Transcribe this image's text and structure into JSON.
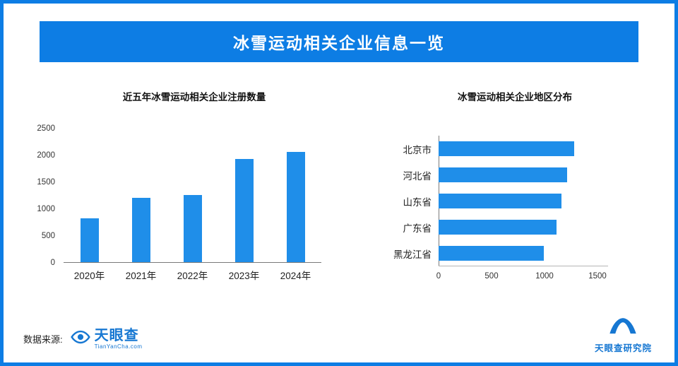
{
  "header": {
    "title": "冰雪运动相关企业信息一览"
  },
  "footer": {
    "source_label": "数据来源:",
    "tianyancha": {
      "name": "天眼查",
      "domain": "TianYanCha.com"
    },
    "research_institute": "天眼查研究院"
  },
  "colors": {
    "accent": "#0d7de4",
    "bar": "#1f8ee9",
    "logo_blue": "#1677d2"
  },
  "chart_data": [
    {
      "type": "bar",
      "orientation": "vertical",
      "title": "近五年冰雪运动相关企业注册数量",
      "categories": [
        "2020年",
        "2021年",
        "2022年",
        "2023年",
        "2024年"
      ],
      "values": [
        810,
        1200,
        1250,
        1920,
        2050
      ],
      "ylim": [
        0,
        2500
      ],
      "yticks": [
        0,
        500,
        1000,
        1500,
        2000,
        2500
      ],
      "grid": false,
      "legend": "none"
    },
    {
      "type": "bar",
      "orientation": "horizontal",
      "title": "冰雪运动相关企业地区分布",
      "categories": [
        "北京市",
        "河北省",
        "山东省",
        "广东省",
        "黑龙江省"
      ],
      "values": [
        1280,
        1210,
        1160,
        1110,
        990
      ],
      "xlim": [
        0,
        1500
      ],
      "xticks": [
        0,
        500,
        1000,
        1500
      ],
      "grid": false,
      "legend": "none"
    }
  ]
}
